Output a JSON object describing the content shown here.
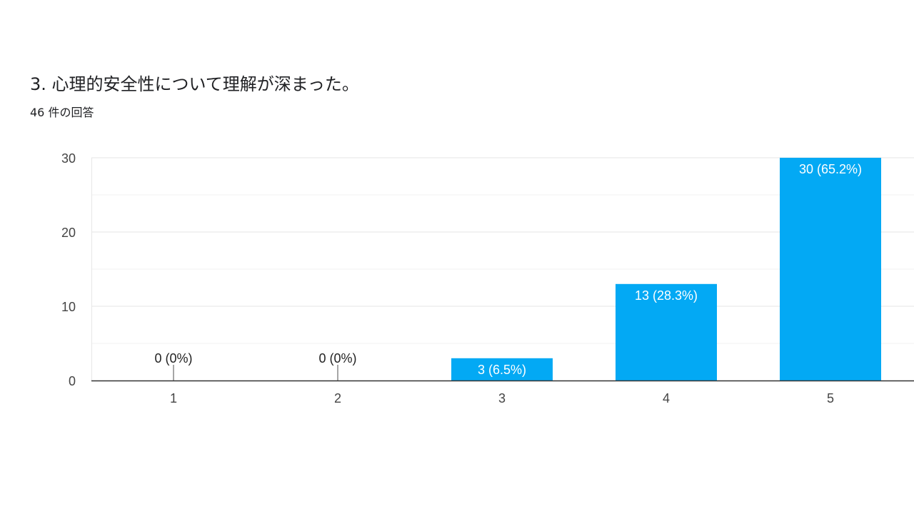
{
  "question": {
    "title": "3. 心理的安全性について理解が深まった。",
    "response_count": "46 件の回答"
  },
  "colors": {
    "bar": "#03a9f4",
    "grid": "#e6e6e6",
    "minor_grid": "#f1f1f1",
    "axis": "#333333"
  },
  "chart_data": {
    "type": "bar",
    "title": "",
    "xlabel": "",
    "ylabel": "",
    "categories": [
      "1",
      "2",
      "3",
      "4",
      "5"
    ],
    "values": [
      0,
      0,
      3,
      13,
      30
    ],
    "data_labels": [
      "0 (0%)",
      "0 (0%)",
      "3 (6.5%)",
      "13 (28.3%)",
      "30 (65.2%)"
    ],
    "ylim": [
      0,
      30
    ],
    "yticks": [
      0,
      10,
      20,
      30
    ],
    "grid": true,
    "legend": "none"
  }
}
